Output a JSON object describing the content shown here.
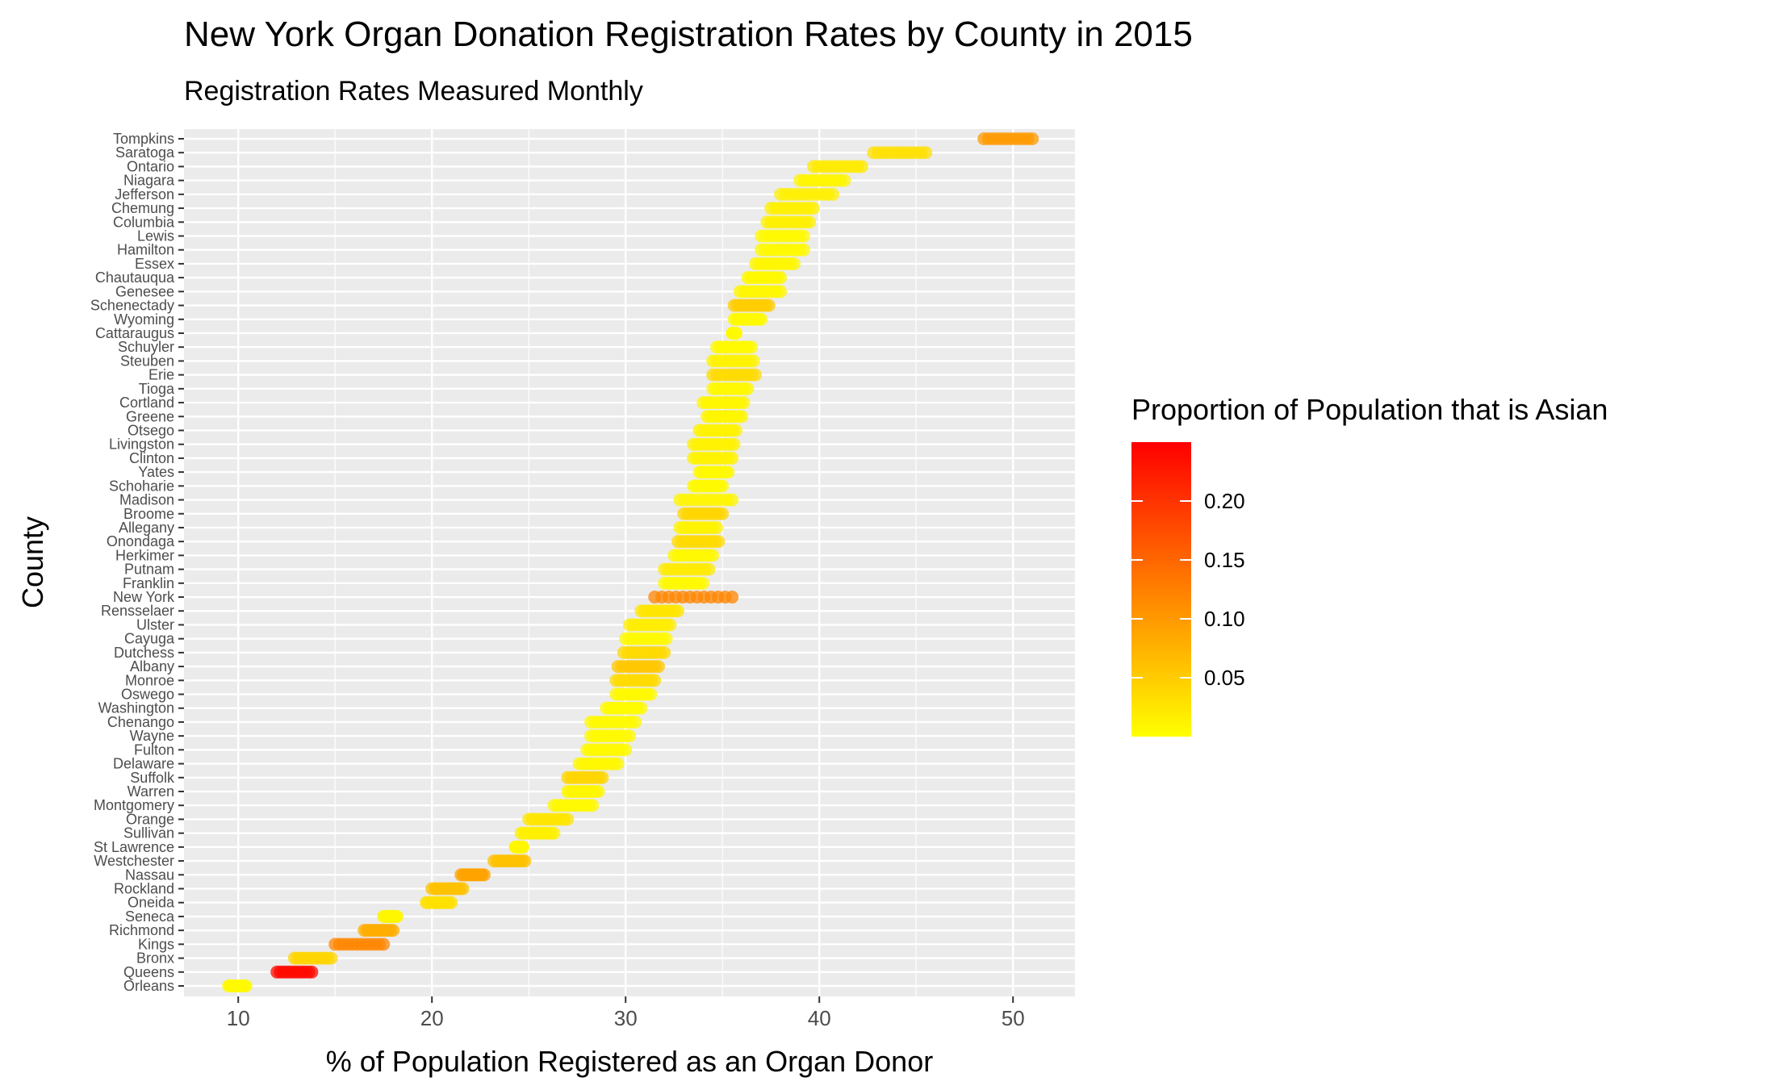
{
  "chart_data": {
    "type": "scatter",
    "title": "New York Organ Donation Registration Rates by County in 2015",
    "subtitle": "Registration Rates Measured Monthly",
    "xlabel": "% of Population Registered as an Organ Donor",
    "ylabel": "County",
    "xlim": [
      7.2,
      53.2
    ],
    "x_ticks": [
      "10",
      "20",
      "30",
      "40",
      "50"
    ],
    "x_tick_values": [
      10,
      20,
      30,
      40,
      50
    ],
    "grid": true,
    "legend": {
      "title": "Proportion of Population that is Asian",
      "placement": "right",
      "ticks": [
        "0.20",
        "0.15",
        "0.10",
        "0.05"
      ],
      "tick_values": [
        0.2,
        0.15,
        0.1,
        0.05
      ],
      "range": [
        0.0,
        0.25
      ],
      "low_color": "#FFFF00",
      "high_color": "#FF0000"
    },
    "counties": [
      {
        "name": "Tompkins",
        "min": 48.5,
        "max": 51.0,
        "asian": 0.1
      },
      {
        "name": "Saratoga",
        "min": 42.8,
        "max": 45.5,
        "asian": 0.03
      },
      {
        "name": "Ontario",
        "min": 39.7,
        "max": 42.2,
        "asian": 0.02
      },
      {
        "name": "Niagara",
        "min": 39.0,
        "max": 41.3,
        "asian": 0.01
      },
      {
        "name": "Jefferson",
        "min": 38.0,
        "max": 40.7,
        "asian": 0.015
      },
      {
        "name": "Chemung",
        "min": 37.5,
        "max": 39.7,
        "asian": 0.015
      },
      {
        "name": "Columbia",
        "min": 37.3,
        "max": 39.5,
        "asian": 0.015
      },
      {
        "name": "Lewis",
        "min": 37.0,
        "max": 39.2,
        "asian": 0.005
      },
      {
        "name": "Hamilton",
        "min": 37.0,
        "max": 39.2,
        "asian": 0.005
      },
      {
        "name": "Essex",
        "min": 36.7,
        "max": 38.7,
        "asian": 0.008
      },
      {
        "name": "Chautauqua",
        "min": 36.3,
        "max": 38.0,
        "asian": 0.007
      },
      {
        "name": "Genesee",
        "min": 35.9,
        "max": 38.0,
        "asian": 0.008
      },
      {
        "name": "Schenectady",
        "min": 35.6,
        "max": 37.4,
        "asian": 0.05
      },
      {
        "name": "Wyoming",
        "min": 35.6,
        "max": 37.0,
        "asian": 0.005
      },
      {
        "name": "Cattaraugus",
        "min": 35.5,
        "max": 35.7,
        "asian": 0.006
      },
      {
        "name": "Schuyler",
        "min": 34.7,
        "max": 36.5,
        "asian": 0.005
      },
      {
        "name": "Steuben",
        "min": 34.5,
        "max": 36.6,
        "asian": 0.012
      },
      {
        "name": "Erie",
        "min": 34.5,
        "max": 36.7,
        "asian": 0.035
      },
      {
        "name": "Tioga",
        "min": 34.5,
        "max": 36.3,
        "asian": 0.007
      },
      {
        "name": "Cortland",
        "min": 34.0,
        "max": 36.1,
        "asian": 0.01
      },
      {
        "name": "Greene",
        "min": 34.2,
        "max": 36.0,
        "asian": 0.009
      },
      {
        "name": "Otsego",
        "min": 33.8,
        "max": 35.7,
        "asian": 0.012
      },
      {
        "name": "Livingston",
        "min": 33.5,
        "max": 35.6,
        "asian": 0.013
      },
      {
        "name": "Clinton",
        "min": 33.5,
        "max": 35.5,
        "asian": 0.012
      },
      {
        "name": "Yates",
        "min": 33.8,
        "max": 35.3,
        "asian": 0.005
      },
      {
        "name": "Schoharie",
        "min": 33.5,
        "max": 35.0,
        "asian": 0.006
      },
      {
        "name": "Madison",
        "min": 32.8,
        "max": 35.5,
        "asian": 0.01
      },
      {
        "name": "Broome",
        "min": 33.0,
        "max": 35.0,
        "asian": 0.04
      },
      {
        "name": "Allegany",
        "min": 32.8,
        "max": 34.7,
        "asian": 0.012
      },
      {
        "name": "Onondaga",
        "min": 32.7,
        "max": 34.8,
        "asian": 0.035
      },
      {
        "name": "Herkimer",
        "min": 32.5,
        "max": 34.5,
        "asian": 0.007
      },
      {
        "name": "Putnam",
        "min": 32.0,
        "max": 34.3,
        "asian": 0.02
      },
      {
        "name": "Franklin",
        "min": 32.0,
        "max": 34.0,
        "asian": 0.005
      },
      {
        "name": "New York",
        "min": 31.5,
        "max": 35.5,
        "asian": 0.12
      },
      {
        "name": "Rensselaer",
        "min": 30.8,
        "max": 32.7,
        "asian": 0.025
      },
      {
        "name": "Ulster",
        "min": 30.2,
        "max": 32.3,
        "asian": 0.017
      },
      {
        "name": "Cayuga",
        "min": 30.0,
        "max": 32.1,
        "asian": 0.006
      },
      {
        "name": "Dutchess",
        "min": 29.9,
        "max": 32.0,
        "asian": 0.036
      },
      {
        "name": "Albany",
        "min": 29.6,
        "max": 31.7,
        "asian": 0.055
      },
      {
        "name": "Monroe",
        "min": 29.5,
        "max": 31.5,
        "asian": 0.035
      },
      {
        "name": "Oswego",
        "min": 29.5,
        "max": 31.3,
        "asian": 0.005
      },
      {
        "name": "Washington",
        "min": 29.0,
        "max": 30.8,
        "asian": 0.004
      },
      {
        "name": "Chenango",
        "min": 28.2,
        "max": 30.5,
        "asian": 0.005
      },
      {
        "name": "Wayne",
        "min": 28.2,
        "max": 30.2,
        "asian": 0.006
      },
      {
        "name": "Fulton",
        "min": 28.0,
        "max": 30.0,
        "asian": 0.006
      },
      {
        "name": "Delaware",
        "min": 27.6,
        "max": 29.6,
        "asian": 0.008
      },
      {
        "name": "Suffolk",
        "min": 27.0,
        "max": 28.8,
        "asian": 0.04
      },
      {
        "name": "Warren",
        "min": 27.0,
        "max": 28.6,
        "asian": 0.008
      },
      {
        "name": "Montgomery",
        "min": 26.3,
        "max": 28.3,
        "asian": 0.007
      },
      {
        "name": "Orange",
        "min": 25.0,
        "max": 27.0,
        "asian": 0.025
      },
      {
        "name": "Sullivan",
        "min": 24.6,
        "max": 26.3,
        "asian": 0.015
      },
      {
        "name": "St Lawrence",
        "min": 24.3,
        "max": 24.7,
        "asian": 0.01
      },
      {
        "name": "Westchester",
        "min": 23.2,
        "max": 24.8,
        "asian": 0.06
      },
      {
        "name": "Nassau",
        "min": 21.5,
        "max": 22.7,
        "asian": 0.09
      },
      {
        "name": "Rockland",
        "min": 20.0,
        "max": 21.6,
        "asian": 0.06
      },
      {
        "name": "Oneida",
        "min": 19.7,
        "max": 21.0,
        "asian": 0.03
      },
      {
        "name": "Seneca",
        "min": 17.5,
        "max": 18.2,
        "asian": 0.008
      },
      {
        "name": "Richmond",
        "min": 16.5,
        "max": 18.0,
        "asian": 0.08
      },
      {
        "name": "Kings",
        "min": 15.0,
        "max": 17.5,
        "asian": 0.12
      },
      {
        "name": "Bronx",
        "min": 12.9,
        "max": 14.8,
        "asian": 0.04
      },
      {
        "name": "Queens",
        "min": 12.0,
        "max": 13.8,
        "asian": 0.24
      },
      {
        "name": "Orleans",
        "min": 9.5,
        "max": 10.4,
        "asian": 0.005
      }
    ]
  }
}
